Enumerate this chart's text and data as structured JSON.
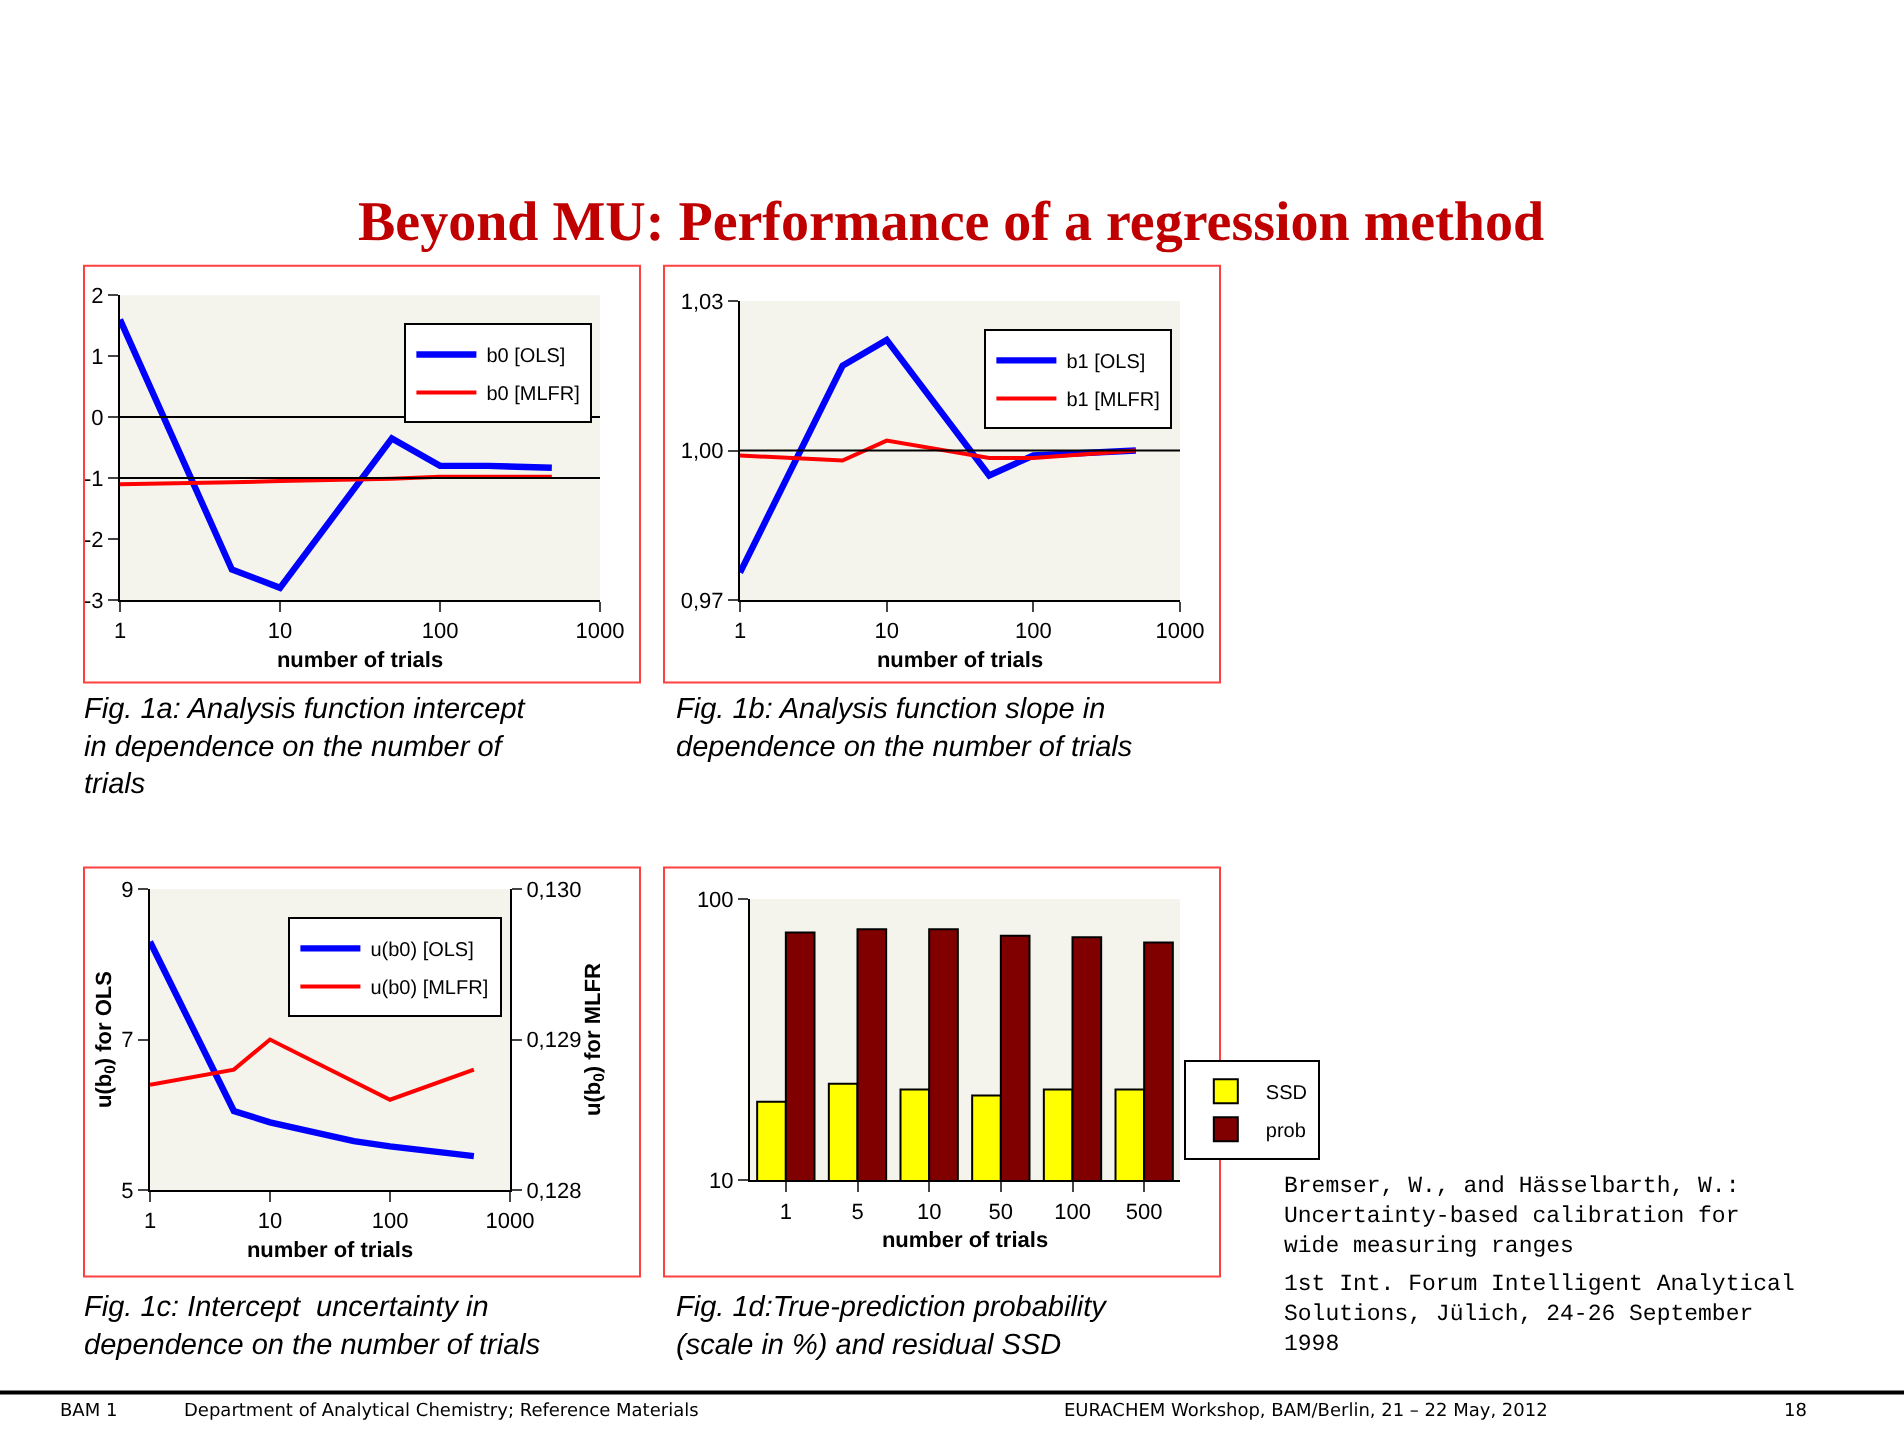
{
  "chart_data": [
    {
      "type": "line",
      "title": "Beyond MU: Performance of a regression method",
      "xlabel": "number of trials",
      "log": "x",
      "xlim": [
        1,
        1000
      ],
      "xticks": [
        1,
        10,
        100,
        1000
      ],
      "ylim": [
        -3,
        2
      ],
      "yticks": [
        -3,
        -2,
        -1,
        0,
        1,
        2
      ],
      "legend": "top right",
      "grid": false,
      "series": [
        {
          "name": "b0 [OLS]",
          "color": "#0000ff",
          "x": [
            1,
            5,
            10,
            50,
            100,
            200,
            500
          ],
          "values": [
            1.6,
            -2.5,
            -2.8,
            -0.35,
            -0.8,
            -0.8,
            -0.83
          ]
        },
        {
          "name": "b0 [MLFR]",
          "color": "#ff0000",
          "x": [
            1,
            5,
            10,
            50,
            100,
            500
          ],
          "values": [
            -1.1,
            -1.07,
            -1.05,
            -1.01,
            -0.98,
            -0.98
          ]
        }
      ],
      "ref_lines": [
        {
          "axis": "y",
          "value": -1,
          "color": "#000000"
        },
        {
          "axis": "y",
          "value": 0,
          "color": "#000000"
        }
      ],
      "annotations": [
        "Fig. 1a: Analysis function intercept in dependence on the number of trials"
      ]
    },
    {
      "type": "line",
      "xlabel": "number of trials",
      "log": "x",
      "xlim": [
        1,
        1000
      ],
      "xticks": [
        1,
        10,
        100,
        1000
      ],
      "ylim": [
        0.97,
        1.03
      ],
      "yticks": [
        {
          "value": 0.97,
          "label": "0,97"
        },
        {
          "value": 1.0,
          "label": "1,00"
        },
        {
          "value": 1.03,
          "label": "1,03"
        }
      ],
      "legend": "top right",
      "grid": false,
      "series": [
        {
          "name": "b1 [OLS]",
          "color": "#0000ff",
          "x": [
            1,
            5,
            10,
            50,
            100,
            500
          ],
          "values": [
            0.9755,
            1.017,
            1.0222,
            0.995,
            0.999,
            1.0
          ]
        },
        {
          "name": "b1 [MLFR]",
          "color": "#ff0000",
          "x": [
            1,
            5,
            10,
            50,
            100,
            500
          ],
          "values": [
            0.999,
            0.998,
            1.002,
            0.9985,
            0.9985,
            1.0
          ]
        }
      ],
      "ref_lines": [
        {
          "axis": "y",
          "value": 1.0,
          "color": "#000000"
        }
      ],
      "annotations": [
        "Fig. 1b: Analysis function slope in dependence on the number of trials"
      ]
    },
    {
      "type": "line",
      "xlabel": "number of trials",
      "ylabel": "u(b$_{0}$) for OLS",
      "y2label": "u(b$_{0}$) for MLFR",
      "log": "x",
      "xlim": [
        1,
        1000
      ],
      "xticks": [
        1,
        10,
        100,
        1000
      ],
      "ylim": [
        5,
        9
      ],
      "yticks": [
        5,
        7,
        9
      ],
      "y2lim": [
        0.128,
        0.13
      ],
      "y2ticks": [
        {
          "value": 0.128,
          "label": "0,128"
        },
        {
          "value": 0.129,
          "label": "0,129"
        },
        {
          "value": 0.13,
          "label": "0,130"
        }
      ],
      "legend": "top right",
      "grid": false,
      "series": [
        {
          "name": "u(b0) [OLS]",
          "color": "#0000ff",
          "x": [
            1,
            5,
            10,
            50,
            100,
            500
          ],
          "values": [
            8.3,
            6.05,
            5.9,
            5.65,
            5.58,
            5.45
          ]
        },
        {
          "name": "u(b0) [MLFR]",
          "color": "#ff0000",
          "axis": "y2",
          "x": [
            1,
            5,
            10,
            100,
            500
          ],
          "values": [
            0.1287,
            0.1288,
            0.129,
            0.1286,
            0.1288
          ]
        }
      ],
      "annotations": [
        "Fig. 1c: Intercept  uncertainty in dependence on the number of trials"
      ]
    },
    {
      "type": "bar",
      "xlabel": "number of trials",
      "categories": [
        "1",
        "5",
        "10",
        "50",
        "100",
        "500"
      ],
      "log": "y",
      "ylim": [
        10,
        100
      ],
      "yticks": [
        10,
        100
      ],
      "legend": "right",
      "series": [
        {
          "name": "SSD",
          "color": "#ffff00",
          "values": [
            19,
            22,
            21,
            20,
            21,
            21
          ]
        },
        {
          "name": "prob",
          "color": "#800000",
          "values": [
            76,
            78,
            78,
            74,
            73,
            70
          ]
        }
      ],
      "annotations": [
        "Fig. 1d:True-prediction probability (scale in %) and residual SSD",
        "Bremser, W., and Hässelbarth, W.: Uncertainty-based calibration for wide measuring ranges",
        "1st Int. Forum Intelligent Analytical Solutions, Jülich, 24-26 September 1998",
        "BAM 1",
        "Department of Analytical Chemistry; Reference Materials",
        "EURACHEM Workshop, BAM/Berlin, 21 – 22 May, 2012",
        "18"
      ]
    }
  ]
}
